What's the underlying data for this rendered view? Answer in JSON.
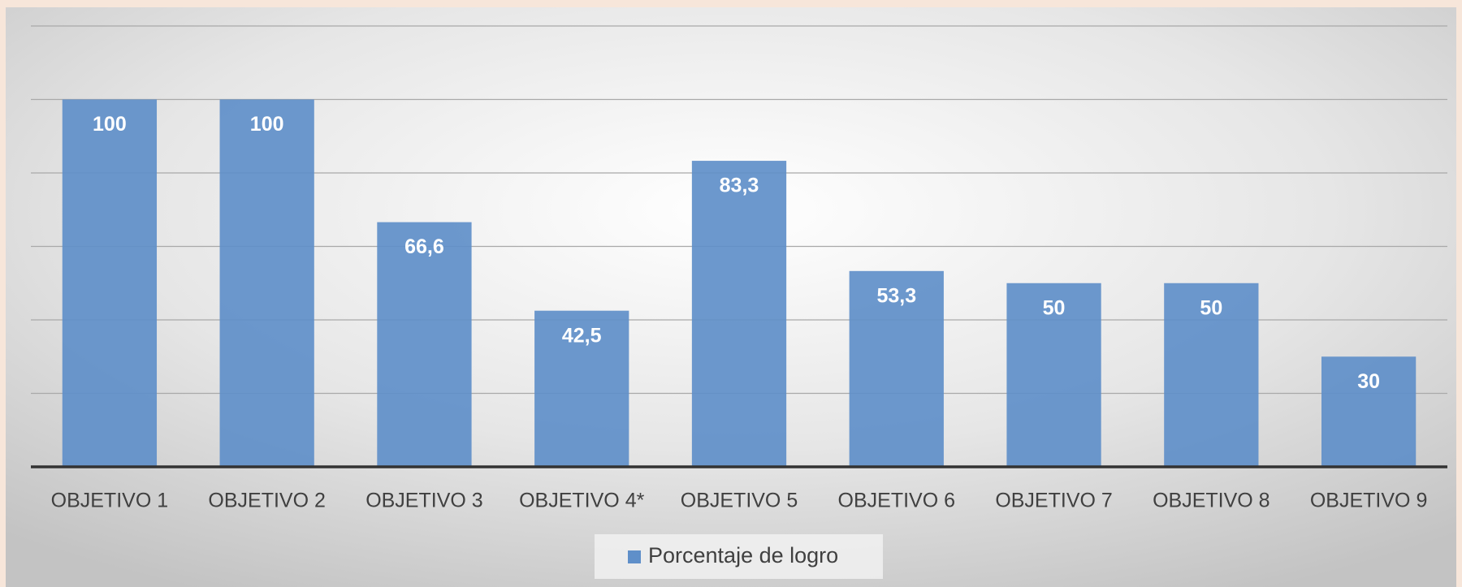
{
  "chart_data": {
    "type": "bar",
    "categories": [
      "OBJETIVO 1",
      "OBJETIVO 2",
      "OBJETIVO 3",
      "OBJETIVO 4*",
      "OBJETIVO 5",
      "OBJETIVO 6",
      "OBJETIVO 7",
      "OBJETIVO 8",
      "OBJETIVO 9"
    ],
    "series": [
      {
        "name": "Porcentaje de logro",
        "color": "#5f8fc9",
        "values": [
          100,
          100,
          66.6,
          42.5,
          83.3,
          53.3,
          50,
          50,
          30
        ],
        "value_labels": [
          "100",
          "100",
          "66,6",
          "42,5",
          "83,3",
          "53,3",
          "50",
          "50",
          "30"
        ]
      }
    ],
    "ylim": [
      0,
      120
    ],
    "yticks": [
      0,
      20,
      40,
      60,
      80,
      100,
      120
    ],
    "grid": true,
    "legend": "bottom"
  }
}
